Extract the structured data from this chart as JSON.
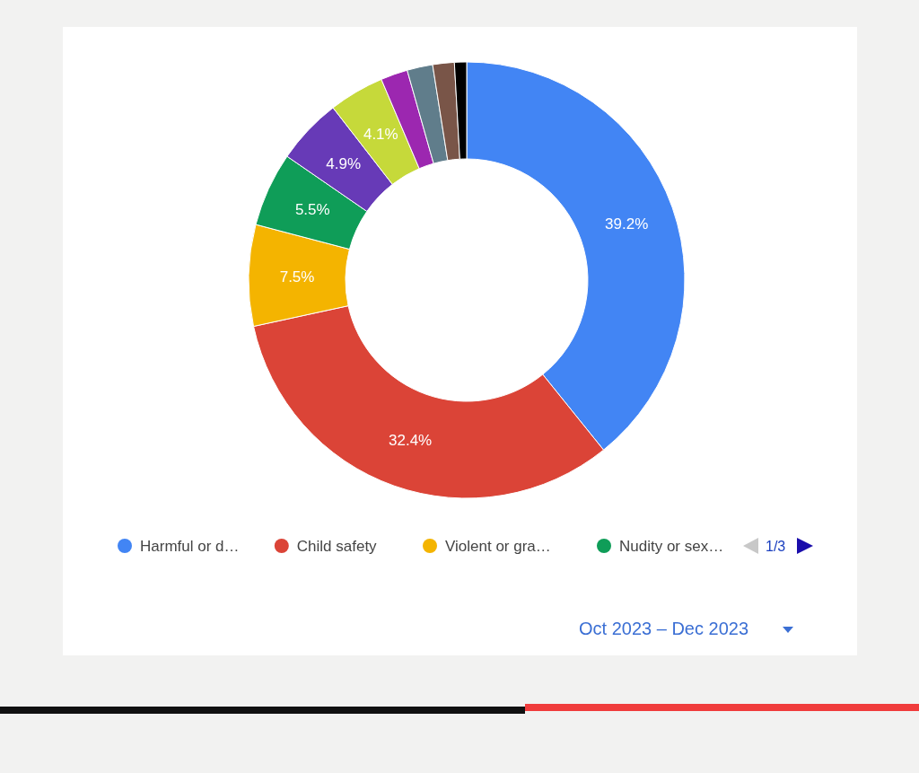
{
  "chart_data": {
    "type": "donut",
    "categories": [
      "Harmful or d…",
      "Child safety",
      "Violent or gra…",
      "Nudity or sex…",
      null,
      null,
      null,
      null,
      null,
      null
    ],
    "values": [
      39.2,
      32.4,
      7.5,
      5.5,
      4.9,
      4.1,
      2.0,
      1.9,
      1.6,
      0.9
    ],
    "colors": [
      "#4285f4",
      "#db4437",
      "#f4b400",
      "#0f9d58",
      "#673ab7",
      "#c6d93a",
      "#9c27b0",
      "#607d8b",
      "#795548",
      "#000000"
    ],
    "value_labels": [
      "39.2%",
      "32.4%",
      "7.5%",
      "5.5%",
      "4.9%",
      "4.1%",
      null,
      null,
      null,
      null
    ],
    "legend": "bottom",
    "annotations": [
      "1/3",
      "Oct 2023 – Dec 2023"
    ]
  }
}
